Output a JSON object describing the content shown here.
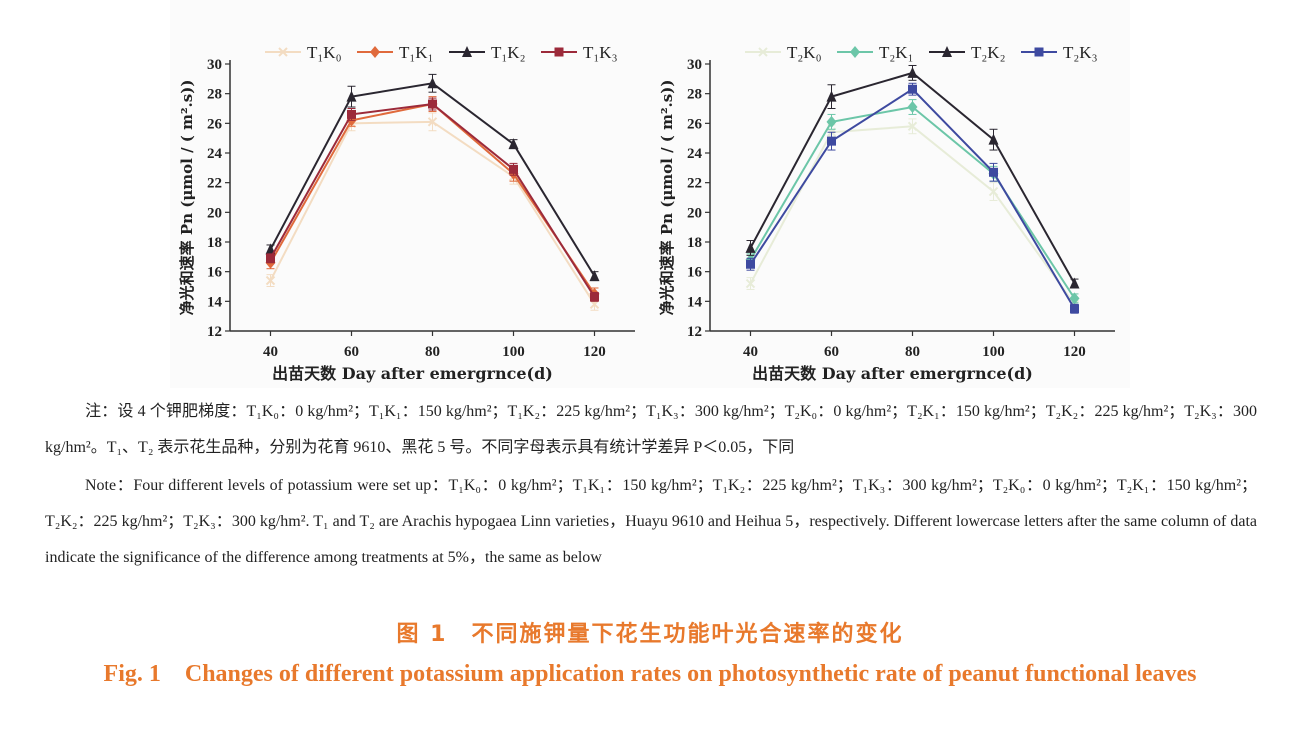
{
  "figure": {
    "caption_cn": "图 1　不同施钾量下花生功能叶光合速率的变化",
    "caption_en": "Fig. 1　Changes of different potassium application rates on photosynthetic rate of peanut functional leaves",
    "note_cn": "注：设 4 个钾肥梯度：T₁K₀：0 kg/hm²；T₁K₁：150 kg/hm²；T₁K₂：225 kg/hm²；T₁K₃：300 kg/hm²；T₂K₀：0 kg/hm²；T₂K₁：150 kg/hm²；T₂K₂：225 kg/hm²；T₂K₃：300 kg/hm²。T₁、T₂ 表示花生品种，分别为花育 9610、黑花 5 号。不同字母表示具有统计学差异 P＜0.05，下同",
    "note_en": "Note：Four different levels of potassium were set up：T₁K₀：0 kg/hm²；T₁K₁：150 kg/hm²；T₁K₂：225 kg/hm²；T₁K₃：300 kg/hm²；T₂K₀：0 kg/hm²；T₂K₁：150 kg/hm²；T₂K₂：225 kg/hm²；T₂K₃：300 kg/hm². T₁ and T₂ are Arachis hypogaea Linn varieties，Huayu 9610 and Heihua 5，respectively. Different lowercase letters after the same column of data indicate the significance of the difference among treatments at 5%，the same as below"
  },
  "chart_data": [
    {
      "type": "line",
      "ylabel": "净光和速率 Pn (μmol / ( m².s))",
      "xlabel": "出苗天数 Day after emergrnce(d)",
      "x": [
        40,
        60,
        80,
        100,
        120
      ],
      "xticks": [
        "40",
        "60",
        "80",
        "100",
        "120"
      ],
      "yticks": [
        "12",
        "14",
        "16",
        "18",
        "20",
        "22",
        "24",
        "26",
        "28",
        "30"
      ],
      "ylim": [
        12,
        30
      ],
      "grid": false,
      "legend": "top",
      "series": [
        {
          "name": "T₁K₀",
          "values": [
            15.4,
            26.0,
            26.1,
            22.4,
            13.8
          ],
          "err": [
            0.4,
            0.5,
            0.6,
            0.5,
            0.4
          ],
          "color": "#f3dcc2",
          "marker": "x"
        },
        {
          "name": "T₁K₁",
          "values": [
            16.6,
            26.2,
            27.3,
            22.6,
            14.5
          ],
          "err": [
            0.4,
            0.4,
            0.5,
            0.5,
            0.4
          ],
          "color": "#e06a3c",
          "marker": "diamond"
        },
        {
          "name": "T₁K₂",
          "values": [
            17.5,
            27.8,
            28.7,
            24.6,
            15.7
          ],
          "err": [
            0.3,
            0.7,
            0.6,
            0.3,
            0.3
          ],
          "color": "#2a2630",
          "marker": "triangle"
        },
        {
          "name": "T₁K₃",
          "values": [
            16.9,
            26.6,
            27.3,
            22.9,
            14.3
          ],
          "err": [
            0.3,
            0.4,
            0.4,
            0.4,
            0.3
          ],
          "color": "#9c2a3a",
          "marker": "square"
        }
      ]
    },
    {
      "type": "line",
      "ylabel": "净光和速率 Pn (μmol / ( m².s))",
      "xlabel": "出苗天数 Day after emergrnce(d)",
      "x": [
        40,
        60,
        80,
        100,
        120
      ],
      "xticks": [
        "40",
        "60",
        "80",
        "100",
        "120"
      ],
      "yticks": [
        "12",
        "14",
        "16",
        "18",
        "20",
        "22",
        "24",
        "26",
        "28",
        "30"
      ],
      "ylim": [
        12,
        30
      ],
      "grid": false,
      "legend": "top",
      "series": [
        {
          "name": "T₂K₀",
          "values": [
            15.2,
            25.4,
            25.8,
            21.4,
            13.8
          ],
          "err": [
            0.4,
            0.5,
            0.5,
            0.6,
            0.4
          ],
          "color": "#e7ecd8",
          "marker": "x"
        },
        {
          "name": "T₂K₁",
          "values": [
            16.8,
            26.1,
            27.1,
            22.6,
            14.2
          ],
          "err": [
            0.4,
            0.5,
            0.5,
            0.5,
            0.3
          ],
          "color": "#6cc6a8",
          "marker": "diamond"
        },
        {
          "name": "T₂K₂",
          "values": [
            17.6,
            27.8,
            29.4,
            24.9,
            15.2
          ],
          "err": [
            0.5,
            0.8,
            0.5,
            0.7,
            0.3
          ],
          "color": "#2a2630",
          "marker": "triangle"
        },
        {
          "name": "T₂K₃",
          "values": [
            16.5,
            24.8,
            28.3,
            22.7,
            13.5
          ],
          "err": [
            0.4,
            0.6,
            0.4,
            0.6,
            0.3
          ],
          "color": "#3e4aa0",
          "marker": "square"
        }
      ]
    }
  ]
}
